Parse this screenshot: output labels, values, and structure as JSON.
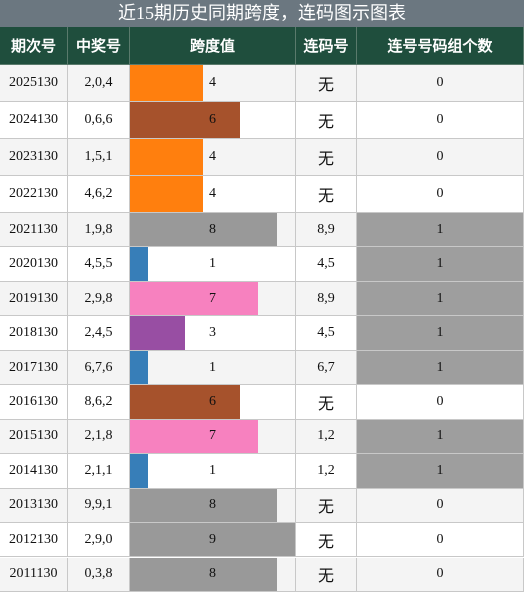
{
  "title": "近15期历史同期跨度，连码图示图表",
  "table": {
    "headers": [
      "期次号",
      "中奖号",
      "跨度值",
      "连码号",
      "连号号码组个数"
    ],
    "rows": [
      {
        "period": "2025130",
        "numbers": "2,0,4",
        "span": 4,
        "color": "#ff7f0e",
        "consecutive": "无",
        "groups": 0
      },
      {
        "period": "2024130",
        "numbers": "0,6,6",
        "span": 6,
        "color": "#a6522c",
        "consecutive": "无",
        "groups": 0
      },
      {
        "period": "2023130",
        "numbers": "1,5,1",
        "span": 4,
        "color": "#ff7f0e",
        "consecutive": "无",
        "groups": 0
      },
      {
        "period": "2022130",
        "numbers": "4,6,2",
        "span": 4,
        "color": "#ff7f0e",
        "consecutive": "无",
        "groups": 0
      },
      {
        "period": "2021130",
        "numbers": "1,9,8",
        "span": 8,
        "color": "#999999",
        "consecutive": "8,9",
        "groups": 1
      },
      {
        "period": "2020130",
        "numbers": "4,5,5",
        "span": 1,
        "color": "#377eb8",
        "consecutive": "4,5",
        "groups": 1
      },
      {
        "period": "2019130",
        "numbers": "2,9,8",
        "span": 7,
        "color": "#f781bf",
        "consecutive": "8,9",
        "groups": 1
      },
      {
        "period": "2018130",
        "numbers": "2,4,5",
        "span": 3,
        "color": "#984ea3",
        "consecutive": "4,5",
        "groups": 1
      },
      {
        "period": "2017130",
        "numbers": "6,7,6",
        "span": 1,
        "color": "#377eb8",
        "consecutive": "6,7",
        "groups": 1
      },
      {
        "period": "2016130",
        "numbers": "8,6,2",
        "span": 6,
        "color": "#a6522c",
        "consecutive": "无",
        "groups": 0
      },
      {
        "period": "2015130",
        "numbers": "2,1,8",
        "span": 7,
        "color": "#f781bf",
        "consecutive": "1,2",
        "groups": 1
      },
      {
        "period": "2014130",
        "numbers": "2,1,1",
        "span": 1,
        "color": "#377eb8",
        "consecutive": "1,2",
        "groups": 1
      },
      {
        "period": "2013130",
        "numbers": "9,9,1",
        "span": 8,
        "color": "#999999",
        "consecutive": "无",
        "groups": 0
      },
      {
        "period": "2012130",
        "numbers": "2,9,0",
        "span": 9,
        "color": "#999999",
        "consecutive": "无",
        "groups": 0
      },
      {
        "period": "2011130",
        "numbers": "0,3,8",
        "span": 8,
        "color": "#999999",
        "consecutive": "无",
        "groups": 0
      }
    ]
  }
}
